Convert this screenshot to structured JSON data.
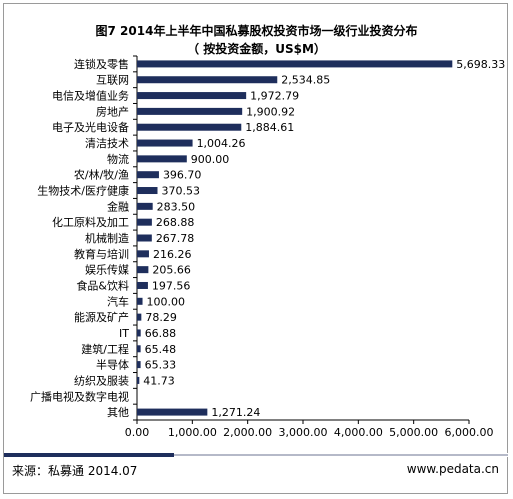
{
  "title_line1": "图7 2014年上半年中国私募股权投资市场一级行业投资分布",
  "title_line2": "（ 按投资金额，US$M）",
  "source": "来源：私募通   2014.07",
  "site": "www.pedata.cn",
  "bar_color": "#1e2e5c",
  "chart_data": {
    "type": "bar",
    "orientation": "horizontal",
    "title": "图7 2014年上半年中国私募股权投资市场一级行业投资分布",
    "subtitle": "（ 按投资金额，US$M）",
    "xlabel": "",
    "ylabel": "",
    "xlim": [
      0,
      6000
    ],
    "xticks": [
      0,
      1000,
      2000,
      3000,
      4000,
      5000,
      6000
    ],
    "xtick_labels": [
      "0.00",
      "1,000.00",
      "2,000.00",
      "3,000.00",
      "4,000.00",
      "5,000.00",
      "6,000.00"
    ],
    "grid": false,
    "legend": "none",
    "categories": [
      "连锁及零售",
      "互联网",
      "电信及增值业务",
      "房地产",
      "电子及光电设备",
      "清洁技术",
      "物流",
      "农/林/牧/渔",
      "生物技术/医疗健康",
      "金融",
      "化工原料及加工",
      "机械制造",
      "教育与培训",
      "娱乐传媒",
      "食品&饮料",
      "汽车",
      "能源及矿产",
      "IT",
      "建筑/工程",
      "半导体",
      "纺织及服装",
      "广播电视及数字电视",
      "其他"
    ],
    "values": [
      5698.33,
      2534.85,
      1972.79,
      1900.92,
      1884.61,
      1004.26,
      900.0,
      396.7,
      370.53,
      283.5,
      268.88,
      267.78,
      216.26,
      205.66,
      197.56,
      100.0,
      78.29,
      66.88,
      65.48,
      65.33,
      41.73,
      0,
      1271.24
    ],
    "value_labels": [
      "5,698.33",
      "2,534.85",
      "1,972.79",
      "1,900.92",
      "1,884.61",
      "1,004.26",
      "900.00",
      "396.70",
      "370.53",
      "283.50",
      "268.88",
      "267.78",
      "216.26",
      "205.66",
      "197.56",
      "100.00",
      "78.29",
      "66.88",
      "65.48",
      "65.33",
      "41.73",
      "",
      "1,271.24"
    ]
  }
}
